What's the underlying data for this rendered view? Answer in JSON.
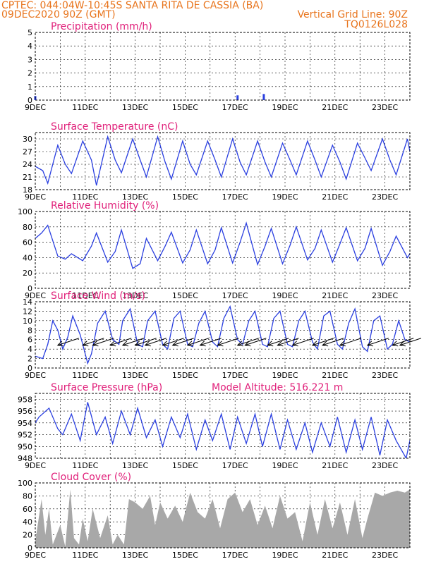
{
  "header": {
    "line1_left": "CPTEC:   044:04W-10:45S  SANTA RITA DE CASSIA (BA)",
    "line2_left": "09DEC2020 90Z (GMT)",
    "line2_right": "Vertical Grid Line: 90Z",
    "line3_right": "TQ0126L028"
  },
  "colors": {
    "header_text": "#e8741c",
    "title_text": "#e0207a",
    "series_line": "#2a3fe0",
    "cloud_fill": "#a8a8a8",
    "grid": "#000000"
  },
  "chart_data": [
    {
      "type": "bar",
      "title": "Precipitation (mm/h)",
      "ylim": [
        0,
        5
      ],
      "yticks": [
        0,
        1,
        2,
        3,
        4,
        5
      ],
      "xticks": [
        "9DEC",
        "11DEC",
        "13DEC",
        "15DEC",
        "17DEC",
        "19DEC",
        "21DEC",
        "23DEC"
      ],
      "x_range_days": [
        0,
        15
      ],
      "grid": true,
      "series": [
        {
          "x": [
            0.0,
            8.1,
            9.15
          ],
          "values": [
            0.3,
            0.35,
            0.45
          ]
        }
      ]
    },
    {
      "type": "line",
      "title": "Surface Temperature (nC)",
      "ylim": [
        18,
        31.5
      ],
      "yticks": [
        18,
        21,
        24,
        27,
        30
      ],
      "xticks": [
        "9DEC",
        "11DEC",
        "13DEC",
        "15DEC",
        "17DEC",
        "19DEC",
        "21DEC",
        "23DEC"
      ],
      "x_range_days": [
        0,
        15
      ],
      "grid": true,
      "series": [
        {
          "x": [
            0,
            0.3,
            0.5,
            0.9,
            1.2,
            1.45,
            1.9,
            2.25,
            2.45,
            2.9,
            3.2,
            3.45,
            3.9,
            4.2,
            4.45,
            4.9,
            5.2,
            5.45,
            5.9,
            6.2,
            6.45,
            6.9,
            7.2,
            7.45,
            7.9,
            8.2,
            8.45,
            8.9,
            9.2,
            9.45,
            9.9,
            10.2,
            10.45,
            10.9,
            11.2,
            11.45,
            11.9,
            12.2,
            12.45,
            12.9,
            13.2,
            13.45,
            13.9,
            14.2,
            14.45,
            14.9,
            15
          ],
          "values": [
            23.5,
            22.5,
            19.5,
            28.5,
            24.0,
            21.8,
            29.5,
            25.0,
            19.0,
            30.5,
            25.0,
            22.0,
            30.0,
            25.0,
            21.0,
            30.5,
            24.5,
            20.5,
            29.5,
            24.0,
            21.5,
            29.5,
            25.0,
            21.0,
            30.0,
            24.5,
            21.5,
            29.5,
            24.5,
            21.0,
            29.0,
            25.0,
            21.5,
            29.5,
            25.0,
            21.0,
            28.5,
            24.5,
            20.5,
            29.0,
            25.5,
            22.5,
            30.0,
            25.0,
            21.5,
            30.0,
            27.0
          ]
        }
      ]
    },
    {
      "type": "line",
      "title": "Relative Humidity (%)",
      "ylim": [
        0,
        100
      ],
      "yticks": [
        0,
        20,
        40,
        60,
        80,
        100
      ],
      "xticks": [
        "9DEC",
        "11DEC",
        "13DEC",
        "15DEC",
        "17DEC",
        "19DEC",
        "21DEC",
        "23DEC"
      ],
      "x_range_days": [
        0,
        15
      ],
      "grid": true,
      "series": [
        {
          "x": [
            0,
            0.25,
            0.5,
            0.9,
            1.2,
            1.45,
            1.9,
            2.25,
            2.45,
            2.9,
            3.2,
            3.45,
            3.9,
            4.2,
            4.45,
            4.9,
            5.2,
            5.45,
            5.9,
            6.2,
            6.45,
            6.9,
            7.2,
            7.45,
            7.9,
            8.2,
            8.45,
            8.9,
            9.2,
            9.45,
            9.9,
            10.2,
            10.45,
            10.9,
            11.2,
            11.45,
            11.9,
            12.2,
            12.45,
            12.9,
            13.2,
            13.45,
            13.9,
            14.2,
            14.45,
            14.9,
            15
          ],
          "values": [
            65,
            72,
            82,
            42,
            38,
            45,
            36,
            55,
            72,
            34,
            48,
            76,
            26,
            32,
            65,
            36,
            55,
            73,
            33,
            50,
            76,
            32,
            50,
            79,
            33,
            60,
            85,
            31,
            55,
            78,
            32,
            56,
            80,
            37,
            52,
            76,
            34,
            58,
            79,
            36,
            52,
            78,
            30,
            48,
            68,
            40,
            45
          ]
        }
      ]
    },
    {
      "type": "line",
      "title": "Surface Wind (m/s)",
      "ylim": [
        0,
        14
      ],
      "yticks": [
        0,
        2,
        4,
        6,
        8,
        10,
        12,
        14
      ],
      "xticks": [
        "9DEC",
        "11DEC",
        "13DEC",
        "15DEC",
        "17DEC",
        "19DEC",
        "21DEC",
        "23DEC"
      ],
      "x_range_days": [
        0,
        15
      ],
      "grid": true,
      "wind_arrow_x": [
        0.9,
        1.9,
        2.3,
        3.0,
        3.5,
        4.0,
        4.4,
        5.1,
        5.5,
        6.1,
        6.6,
        7.3,
        8.1,
        8.4,
        9.3,
        9.7,
        10.3,
        11.1,
        11.5,
        12.2,
        13.3,
        14.3,
        14.6
      ],
      "series": [
        {
          "x": [
            0,
            0.3,
            0.5,
            0.7,
            0.9,
            1.1,
            1.3,
            1.5,
            1.8,
            2.1,
            2.25,
            2.5,
            2.8,
            3.1,
            3.35,
            3.5,
            3.8,
            4.1,
            4.3,
            4.5,
            4.8,
            5.1,
            5.3,
            5.55,
            5.8,
            6.1,
            6.3,
            6.55,
            6.8,
            7.1,
            7.3,
            7.55,
            7.8,
            8.1,
            8.3,
            8.55,
            8.8,
            9.1,
            9.3,
            9.55,
            9.8,
            10.1,
            10.3,
            10.55,
            10.8,
            11.1,
            11.3,
            11.55,
            11.8,
            12.1,
            12.3,
            12.55,
            12.8,
            13.1,
            13.3,
            13.55,
            13.8,
            14.1,
            14.3,
            14.55,
            14.8,
            15
          ],
          "values": [
            2.5,
            2.0,
            5.0,
            10.0,
            8.0,
            4.0,
            6.5,
            11.0,
            7.0,
            1.0,
            3.0,
            9.5,
            12.0,
            6.0,
            5.0,
            10.0,
            12.5,
            5.0,
            4.5,
            10.0,
            12.0,
            5.0,
            4.0,
            10.5,
            12.0,
            5.0,
            4.5,
            9.5,
            12.0,
            5.5,
            4.5,
            10.5,
            13.0,
            6.0,
            5.0,
            10.0,
            12.0,
            5.0,
            4.5,
            10.5,
            12.0,
            5.0,
            4.5,
            10.0,
            12.0,
            5.5,
            4.0,
            11.0,
            12.0,
            5.0,
            4.0,
            9.5,
            12.5,
            4.5,
            3.5,
            10.0,
            11.0,
            4.0,
            5.0,
            10.0,
            6.0,
            5.5
          ]
        }
      ]
    },
    {
      "type": "line",
      "title": "Surface Pressure (hPa)",
      "annotation": "Model Altitude: 516.221 m",
      "ylim": [
        948,
        959
      ],
      "yticks": [
        948,
        950,
        952,
        954,
        956,
        958
      ],
      "xticks": [
        "9DEC",
        "11DEC",
        "13DEC",
        "15DEC",
        "17DEC",
        "19DEC",
        "21DEC",
        "23DEC"
      ],
      "x_range_days": [
        0,
        15
      ],
      "grid": true,
      "series": [
        {
          "x": [
            0,
            0.15,
            0.55,
            0.9,
            1.1,
            1.45,
            1.8,
            2.1,
            2.45,
            2.8,
            3.1,
            3.45,
            3.8,
            4.1,
            4.45,
            4.8,
            5.1,
            5.45,
            5.8,
            6.1,
            6.45,
            6.8,
            7.1,
            7.45,
            7.8,
            8.1,
            8.45,
            8.8,
            9.1,
            9.45,
            9.8,
            10.1,
            10.45,
            10.8,
            11.1,
            11.45,
            11.8,
            12.1,
            12.45,
            12.8,
            13.1,
            13.45,
            13.8,
            14.1,
            14.45,
            14.85,
            15
          ],
          "values": [
            954.0,
            955.0,
            956.5,
            953.0,
            952.0,
            955.5,
            951.0,
            957.5,
            952.0,
            955.0,
            950.5,
            956.0,
            952.0,
            956.5,
            951.5,
            954.5,
            950.0,
            955.0,
            951.5,
            955.5,
            949.5,
            954.5,
            951.0,
            955.5,
            949.5,
            955.0,
            950.5,
            955.5,
            950.0,
            955.5,
            949.5,
            954.5,
            949.5,
            954.0,
            949.0,
            954.0,
            950.0,
            955.0,
            949.0,
            954.5,
            949.5,
            955.0,
            948.5,
            954.5,
            951.0,
            948.0,
            951.0
          ]
        }
      ]
    },
    {
      "type": "area",
      "title": "Cloud Cover (%)",
      "ylim": [
        0,
        100
      ],
      "yticks": [
        0,
        20,
        40,
        60,
        80,
        100
      ],
      "xticks": [
        "9DEC",
        "11DEC",
        "13DEC",
        "15DEC",
        "17DEC",
        "19DEC",
        "21DEC",
        "23DEC"
      ],
      "x_range_days": [
        0,
        15
      ],
      "grid": true,
      "series": [
        {
          "x": [
            0,
            0.25,
            0.4,
            0.55,
            0.7,
            1.0,
            1.2,
            1.4,
            1.55,
            1.75,
            1.9,
            2.1,
            2.3,
            2.6,
            2.9,
            3.1,
            3.3,
            3.55,
            3.75,
            4.0,
            4.3,
            4.6,
            4.8,
            5.0,
            5.3,
            5.6,
            5.9,
            6.2,
            6.5,
            6.8,
            7.1,
            7.4,
            7.7,
            8.0,
            8.3,
            8.6,
            8.9,
            9.2,
            9.5,
            9.8,
            10.1,
            10.4,
            10.7,
            11.0,
            11.3,
            11.6,
            11.9,
            12.2,
            12.5,
            12.8,
            13.1,
            13.3,
            13.6,
            13.9,
            14.2,
            14.5,
            14.8,
            15
          ],
          "values": [
            10,
            75,
            20,
            60,
            5,
            35,
            2,
            90,
            15,
            5,
            45,
            10,
            60,
            15,
            50,
            5,
            20,
            5,
            75,
            70,
            60,
            80,
            35,
            70,
            45,
            65,
            40,
            85,
            55,
            45,
            75,
            30,
            75,
            85,
            55,
            75,
            35,
            65,
            30,
            80,
            45,
            55,
            10,
            70,
            20,
            75,
            30,
            70,
            20,
            75,
            15,
            45,
            85,
            80,
            85,
            88,
            85,
            90
          ]
        }
      ]
    }
  ]
}
